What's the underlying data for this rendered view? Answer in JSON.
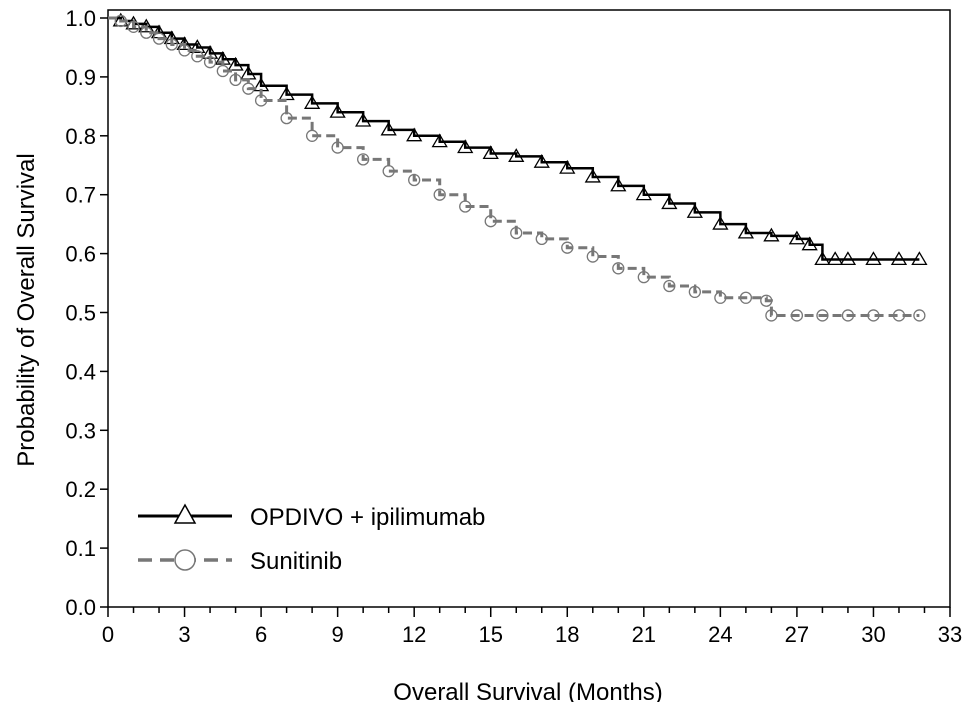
{
  "chart_data": {
    "type": "line",
    "title": "",
    "xlabel": "Overall Survival (Months)",
    "ylabel": "Probability of Overall Survival",
    "xlim": [
      0,
      33
    ],
    "ylim": [
      0,
      1.0
    ],
    "xticks": [
      "0",
      "3",
      "6",
      "9",
      "12",
      "15",
      "18",
      "21",
      "24",
      "27",
      "30",
      "33"
    ],
    "yticks": [
      "0.0",
      "0.1",
      "0.2",
      "0.3",
      "0.4",
      "0.5",
      "0.6",
      "0.7",
      "0.8",
      "0.9",
      "1.0"
    ],
    "grid": false,
    "legend_position": "bottom-left",
    "series": [
      {
        "name": "OPDIVO + ipilimumab",
        "color": "#000000",
        "line_style": "solid",
        "marker": "triangle",
        "x": [
          0,
          0.5,
          1.0,
          1.5,
          2.0,
          2.5,
          3.0,
          3.5,
          4.0,
          4.5,
          5.0,
          5.5,
          6.0,
          7.0,
          8.0,
          9.0,
          10.0,
          11.0,
          12.0,
          13.0,
          14.0,
          15.0,
          16.0,
          17.0,
          18.0,
          19.0,
          20.0,
          21.0,
          22.0,
          23.0,
          24.0,
          25.0,
          26.0,
          27.0,
          27.5,
          28.0,
          28.5,
          29.0,
          30.0,
          31.0,
          31.8
        ],
        "y": [
          1.0,
          0.995,
          0.99,
          0.985,
          0.975,
          0.965,
          0.955,
          0.95,
          0.94,
          0.93,
          0.92,
          0.905,
          0.885,
          0.87,
          0.855,
          0.84,
          0.825,
          0.81,
          0.8,
          0.79,
          0.78,
          0.77,
          0.765,
          0.755,
          0.745,
          0.73,
          0.715,
          0.7,
          0.685,
          0.67,
          0.65,
          0.635,
          0.63,
          0.625,
          0.615,
          0.59,
          0.59,
          0.59,
          0.59,
          0.59,
          0.59
        ]
      },
      {
        "name": "Sunitinib",
        "color": "#777777",
        "line_style": "dashed",
        "marker": "circle",
        "x": [
          0,
          0.5,
          1.0,
          1.5,
          2.0,
          2.5,
          3.0,
          3.5,
          4.0,
          4.5,
          5.0,
          5.5,
          6.0,
          7.0,
          8.0,
          9.0,
          10.0,
          11.0,
          12.0,
          13.0,
          14.0,
          15.0,
          16.0,
          17.0,
          18.0,
          19.0,
          20.0,
          21.0,
          22.0,
          23.0,
          24.0,
          25.0,
          25.8,
          26.0,
          27.0,
          28.0,
          29.0,
          30.0,
          31.0,
          31.8
        ],
        "y": [
          1.0,
          0.995,
          0.985,
          0.975,
          0.965,
          0.955,
          0.945,
          0.935,
          0.925,
          0.91,
          0.895,
          0.88,
          0.86,
          0.83,
          0.8,
          0.78,
          0.76,
          0.74,
          0.725,
          0.7,
          0.68,
          0.655,
          0.635,
          0.625,
          0.61,
          0.595,
          0.575,
          0.56,
          0.545,
          0.535,
          0.525,
          0.525,
          0.52,
          0.495,
          0.495,
          0.495,
          0.495,
          0.495,
          0.495,
          0.495
        ]
      }
    ]
  }
}
